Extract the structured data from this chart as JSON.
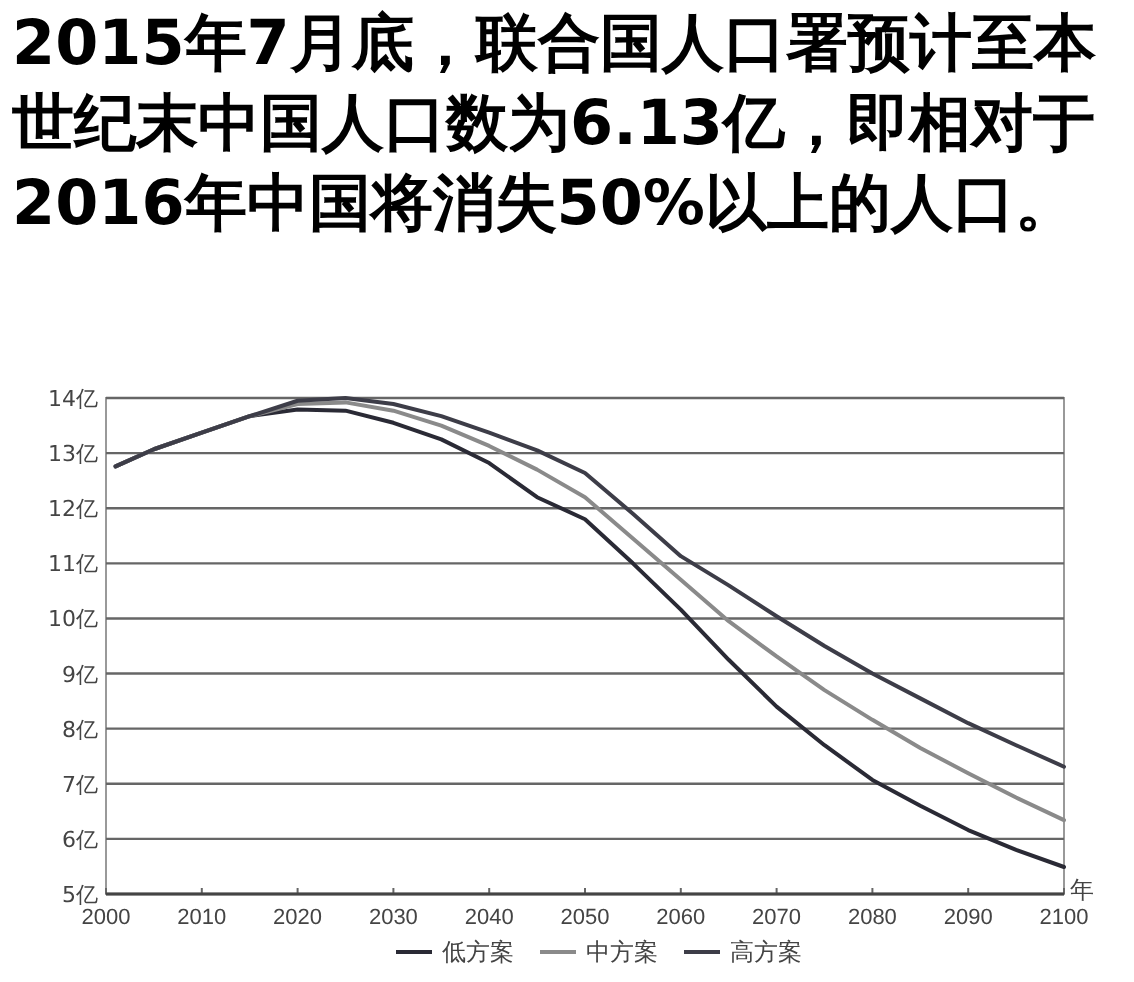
{
  "chart_data": {
    "type": "line",
    "title": "2015年7月底，联合国人口署预计至本世纪末中国人口数为6.13亿，即相对于2016年中国将消失50%以上的人口。",
    "xlabel": "年",
    "x": [
      2001,
      2005,
      2010,
      2015,
      2020,
      2025,
      2030,
      2035,
      2040,
      2045,
      2050,
      2055,
      2060,
      2065,
      2070,
      2075,
      2080,
      2085,
      2090,
      2095,
      2100
    ],
    "series": [
      {
        "name": "低方案",
        "color": "#2a2a35",
        "values": [
          12.76,
          13.07,
          13.37,
          13.67,
          13.79,
          13.77,
          13.55,
          13.25,
          12.82,
          12.2,
          11.8,
          11.0,
          10.16,
          9.25,
          8.4,
          7.7,
          7.07,
          6.6,
          6.16,
          5.8,
          5.49
        ]
      },
      {
        "name": "中方案",
        "color": "#8a8a8a",
        "values": [
          12.76,
          13.07,
          13.37,
          13.67,
          13.89,
          13.92,
          13.77,
          13.5,
          13.13,
          12.7,
          12.2,
          11.45,
          10.7,
          9.95,
          9.31,
          8.7,
          8.16,
          7.65,
          7.19,
          6.75,
          6.34
        ]
      },
      {
        "name": "高方案",
        "color": "#3d3d48",
        "values": [
          12.76,
          13.07,
          13.37,
          13.67,
          13.95,
          14.0,
          13.89,
          13.67,
          13.37,
          13.05,
          12.64,
          11.9,
          11.13,
          10.6,
          10.04,
          9.5,
          9.0,
          8.55,
          8.1,
          7.7,
          7.31
        ]
      }
    ],
    "xlim": [
      2000,
      2100
    ],
    "ylim": [
      5,
      14
    ],
    "xticks": [
      2000,
      2010,
      2020,
      2030,
      2040,
      2050,
      2060,
      2070,
      2080,
      2090,
      2100
    ],
    "yticks": [
      {
        "value": 5,
        "label": "5亿"
      },
      {
        "value": 6,
        "label": "6亿"
      },
      {
        "value": 7,
        "label": "7亿"
      },
      {
        "value": 8,
        "label": "8亿"
      },
      {
        "value": 9,
        "label": "9亿"
      },
      {
        "value": 10,
        "label": "10亿"
      },
      {
        "value": 11,
        "label": "11亿"
      },
      {
        "value": 12,
        "label": "12亿"
      },
      {
        "value": 13,
        "label": "13亿"
      },
      {
        "value": 14,
        "label": "14亿"
      }
    ],
    "grid": "y",
    "legend": "bottom",
    "marker": "none",
    "line_style": "solid"
  }
}
